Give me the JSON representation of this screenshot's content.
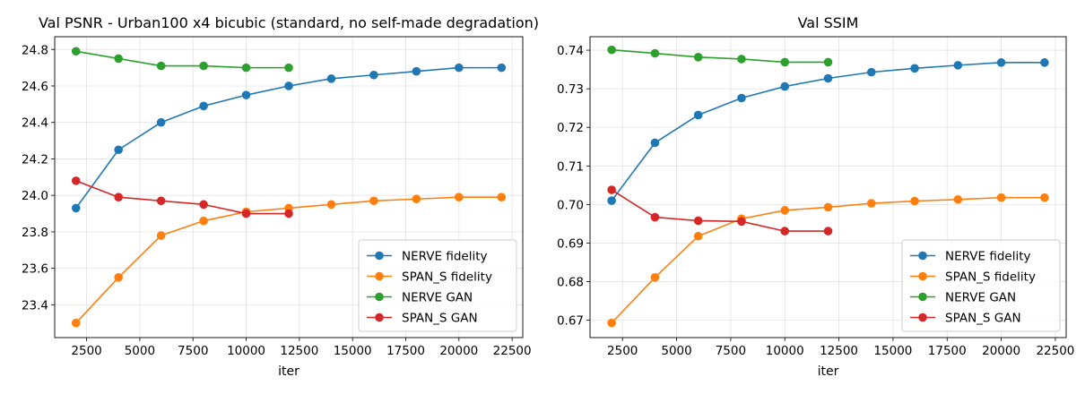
{
  "chart_data": [
    {
      "type": "line",
      "title": "Val PSNR - Urban100 x4 bicubic (standard, no self-made degradation)",
      "xlabel": "iter",
      "ylabel": "",
      "xlim": [
        1000,
        23000
      ],
      "ylim": [
        23.22,
        24.87
      ],
      "xticks": [
        2500,
        5000,
        7500,
        10000,
        12500,
        15000,
        17500,
        20000,
        22500
      ],
      "yticks": [
        23.4,
        23.6,
        23.8,
        24.0,
        24.2,
        24.4,
        24.6,
        24.8
      ],
      "ytick_labels": [
        "23.4",
        "23.6",
        "23.8",
        "24.0",
        "24.2",
        "24.4",
        "24.6",
        "24.8"
      ],
      "grid": true,
      "legend_position": "lower-right",
      "series": [
        {
          "name": "NERVE fidelity",
          "color": "#1f77b4",
          "x": [
            2000,
            4000,
            6000,
            8000,
            10000,
            12000,
            14000,
            16000,
            18000,
            20000,
            22000
          ],
          "y": [
            23.93,
            24.25,
            24.4,
            24.49,
            24.55,
            24.6,
            24.64,
            24.66,
            24.68,
            24.7,
            24.7
          ]
        },
        {
          "name": "SPAN_S fidelity",
          "color": "#ff7f0e",
          "x": [
            2000,
            4000,
            6000,
            8000,
            10000,
            12000,
            14000,
            16000,
            18000,
            20000,
            22000
          ],
          "y": [
            23.3,
            23.55,
            23.78,
            23.86,
            23.91,
            23.93,
            23.95,
            23.97,
            23.98,
            23.99,
            23.99
          ]
        },
        {
          "name": "NERVE GAN",
          "color": "#2ca02c",
          "x": [
            2000,
            4000,
            6000,
            8000,
            10000,
            12000
          ],
          "y": [
            24.79,
            24.75,
            24.71,
            24.71,
            24.7,
            24.7
          ]
        },
        {
          "name": "SPAN_S GAN",
          "color": "#d62728",
          "x": [
            2000,
            4000,
            6000,
            8000,
            10000,
            12000
          ],
          "y": [
            24.08,
            23.99,
            23.97,
            23.95,
            23.9,
            23.9
          ]
        }
      ]
    },
    {
      "type": "line",
      "title": "Val SSIM",
      "xlabel": "iter",
      "ylabel": "",
      "xlim": [
        1000,
        23000
      ],
      "ylim": [
        0.6655,
        0.7435
      ],
      "xticks": [
        2500,
        5000,
        7500,
        10000,
        12500,
        15000,
        17500,
        20000,
        22500
      ],
      "yticks": [
        0.67,
        0.68,
        0.69,
        0.7,
        0.71,
        0.72,
        0.73,
        0.74
      ],
      "ytick_labels": [
        "0.67",
        "0.68",
        "0.69",
        "0.70",
        "0.71",
        "0.72",
        "0.73",
        "0.74"
      ],
      "grid": true,
      "legend_position": "lower-right",
      "series": [
        {
          "name": "NERVE fidelity",
          "color": "#1f77b4",
          "x": [
            2000,
            4000,
            6000,
            8000,
            10000,
            12000,
            14000,
            16000,
            18000,
            20000,
            22000
          ],
          "y": [
            0.701,
            0.716,
            0.7232,
            0.7276,
            0.7306,
            0.7327,
            0.7343,
            0.7353,
            0.7361,
            0.7368,
            0.7368
          ]
        },
        {
          "name": "SPAN_S fidelity",
          "color": "#ff7f0e",
          "x": [
            2000,
            4000,
            6000,
            8000,
            10000,
            12000,
            14000,
            16000,
            18000,
            20000,
            22000
          ],
          "y": [
            0.6693,
            0.6811,
            0.6918,
            0.6963,
            0.6985,
            0.6993,
            0.7003,
            0.7009,
            0.7013,
            0.7018,
            0.7018
          ]
        },
        {
          "name": "NERVE GAN",
          "color": "#2ca02c",
          "x": [
            2000,
            4000,
            6000,
            8000,
            10000,
            12000
          ],
          "y": [
            0.7401,
            0.7392,
            0.7382,
            0.7377,
            0.7369,
            0.7369
          ]
        },
        {
          "name": "SPAN_S GAN",
          "color": "#d62728",
          "x": [
            2000,
            4000,
            6000,
            8000,
            10000,
            12000
          ],
          "y": [
            0.7038,
            0.6967,
            0.6958,
            0.6956,
            0.6931,
            0.6931
          ]
        }
      ]
    }
  ]
}
